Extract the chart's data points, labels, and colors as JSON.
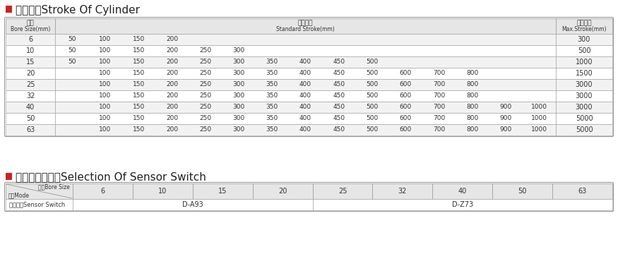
{
  "title1": "气缸行程Stroke Of Cylinder",
  "title2": "感应开关的选择Selection Of Sensor Switch",
  "red_color": "#cc2222",
  "header_bg": "#e6e6e6",
  "border_color": "#999999",
  "text_color": "#333333",
  "table1_rows": [
    [
      "6",
      [
        "50",
        "100",
        "150",
        "200"
      ],
      "300"
    ],
    [
      "10",
      [
        "50",
        "100",
        "150",
        "200",
        "250",
        "300"
      ],
      "500"
    ],
    [
      "15",
      [
        "50",
        "100",
        "150",
        "200",
        "250",
        "300",
        "350",
        "400",
        "450",
        "500"
      ],
      "1000"
    ],
    [
      "20",
      [
        "100",
        "150",
        "200",
        "250",
        "300",
        "350",
        "400",
        "450",
        "500",
        "600",
        "700",
        "800"
      ],
      "1500"
    ],
    [
      "25",
      [
        "100",
        "150",
        "200",
        "250",
        "300",
        "350",
        "400",
        "450",
        "500",
        "600",
        "700",
        "800"
      ],
      "3000"
    ],
    [
      "32",
      [
        "100",
        "150",
        "200",
        "250",
        "300",
        "350",
        "400",
        "450",
        "500",
        "600",
        "700",
        "800"
      ],
      "3000"
    ],
    [
      "40",
      [
        "100",
        "150",
        "200",
        "250",
        "300",
        "350",
        "400",
        "450",
        "500",
        "600",
        "700",
        "800",
        "900",
        "1000"
      ],
      "3000"
    ],
    [
      "50",
      [
        "100",
        "150",
        "200",
        "250",
        "300",
        "350",
        "400",
        "450",
        "500",
        "600",
        "700",
        "800",
        "900",
        "1000"
      ],
      "5000"
    ],
    [
      "63",
      [
        "100",
        "150",
        "200",
        "250",
        "300",
        "350",
        "400",
        "450",
        "500",
        "600",
        "700",
        "800",
        "900",
        "1000"
      ],
      "5000"
    ]
  ],
  "bore_sizes": [
    "6",
    "10",
    "15",
    "20",
    "25",
    "32",
    "40",
    "50",
    "63"
  ],
  "da93_label": "D-A93",
  "dz73_label": "D-Z73",
  "da93_cols": 4,
  "dz73_cols": 5
}
